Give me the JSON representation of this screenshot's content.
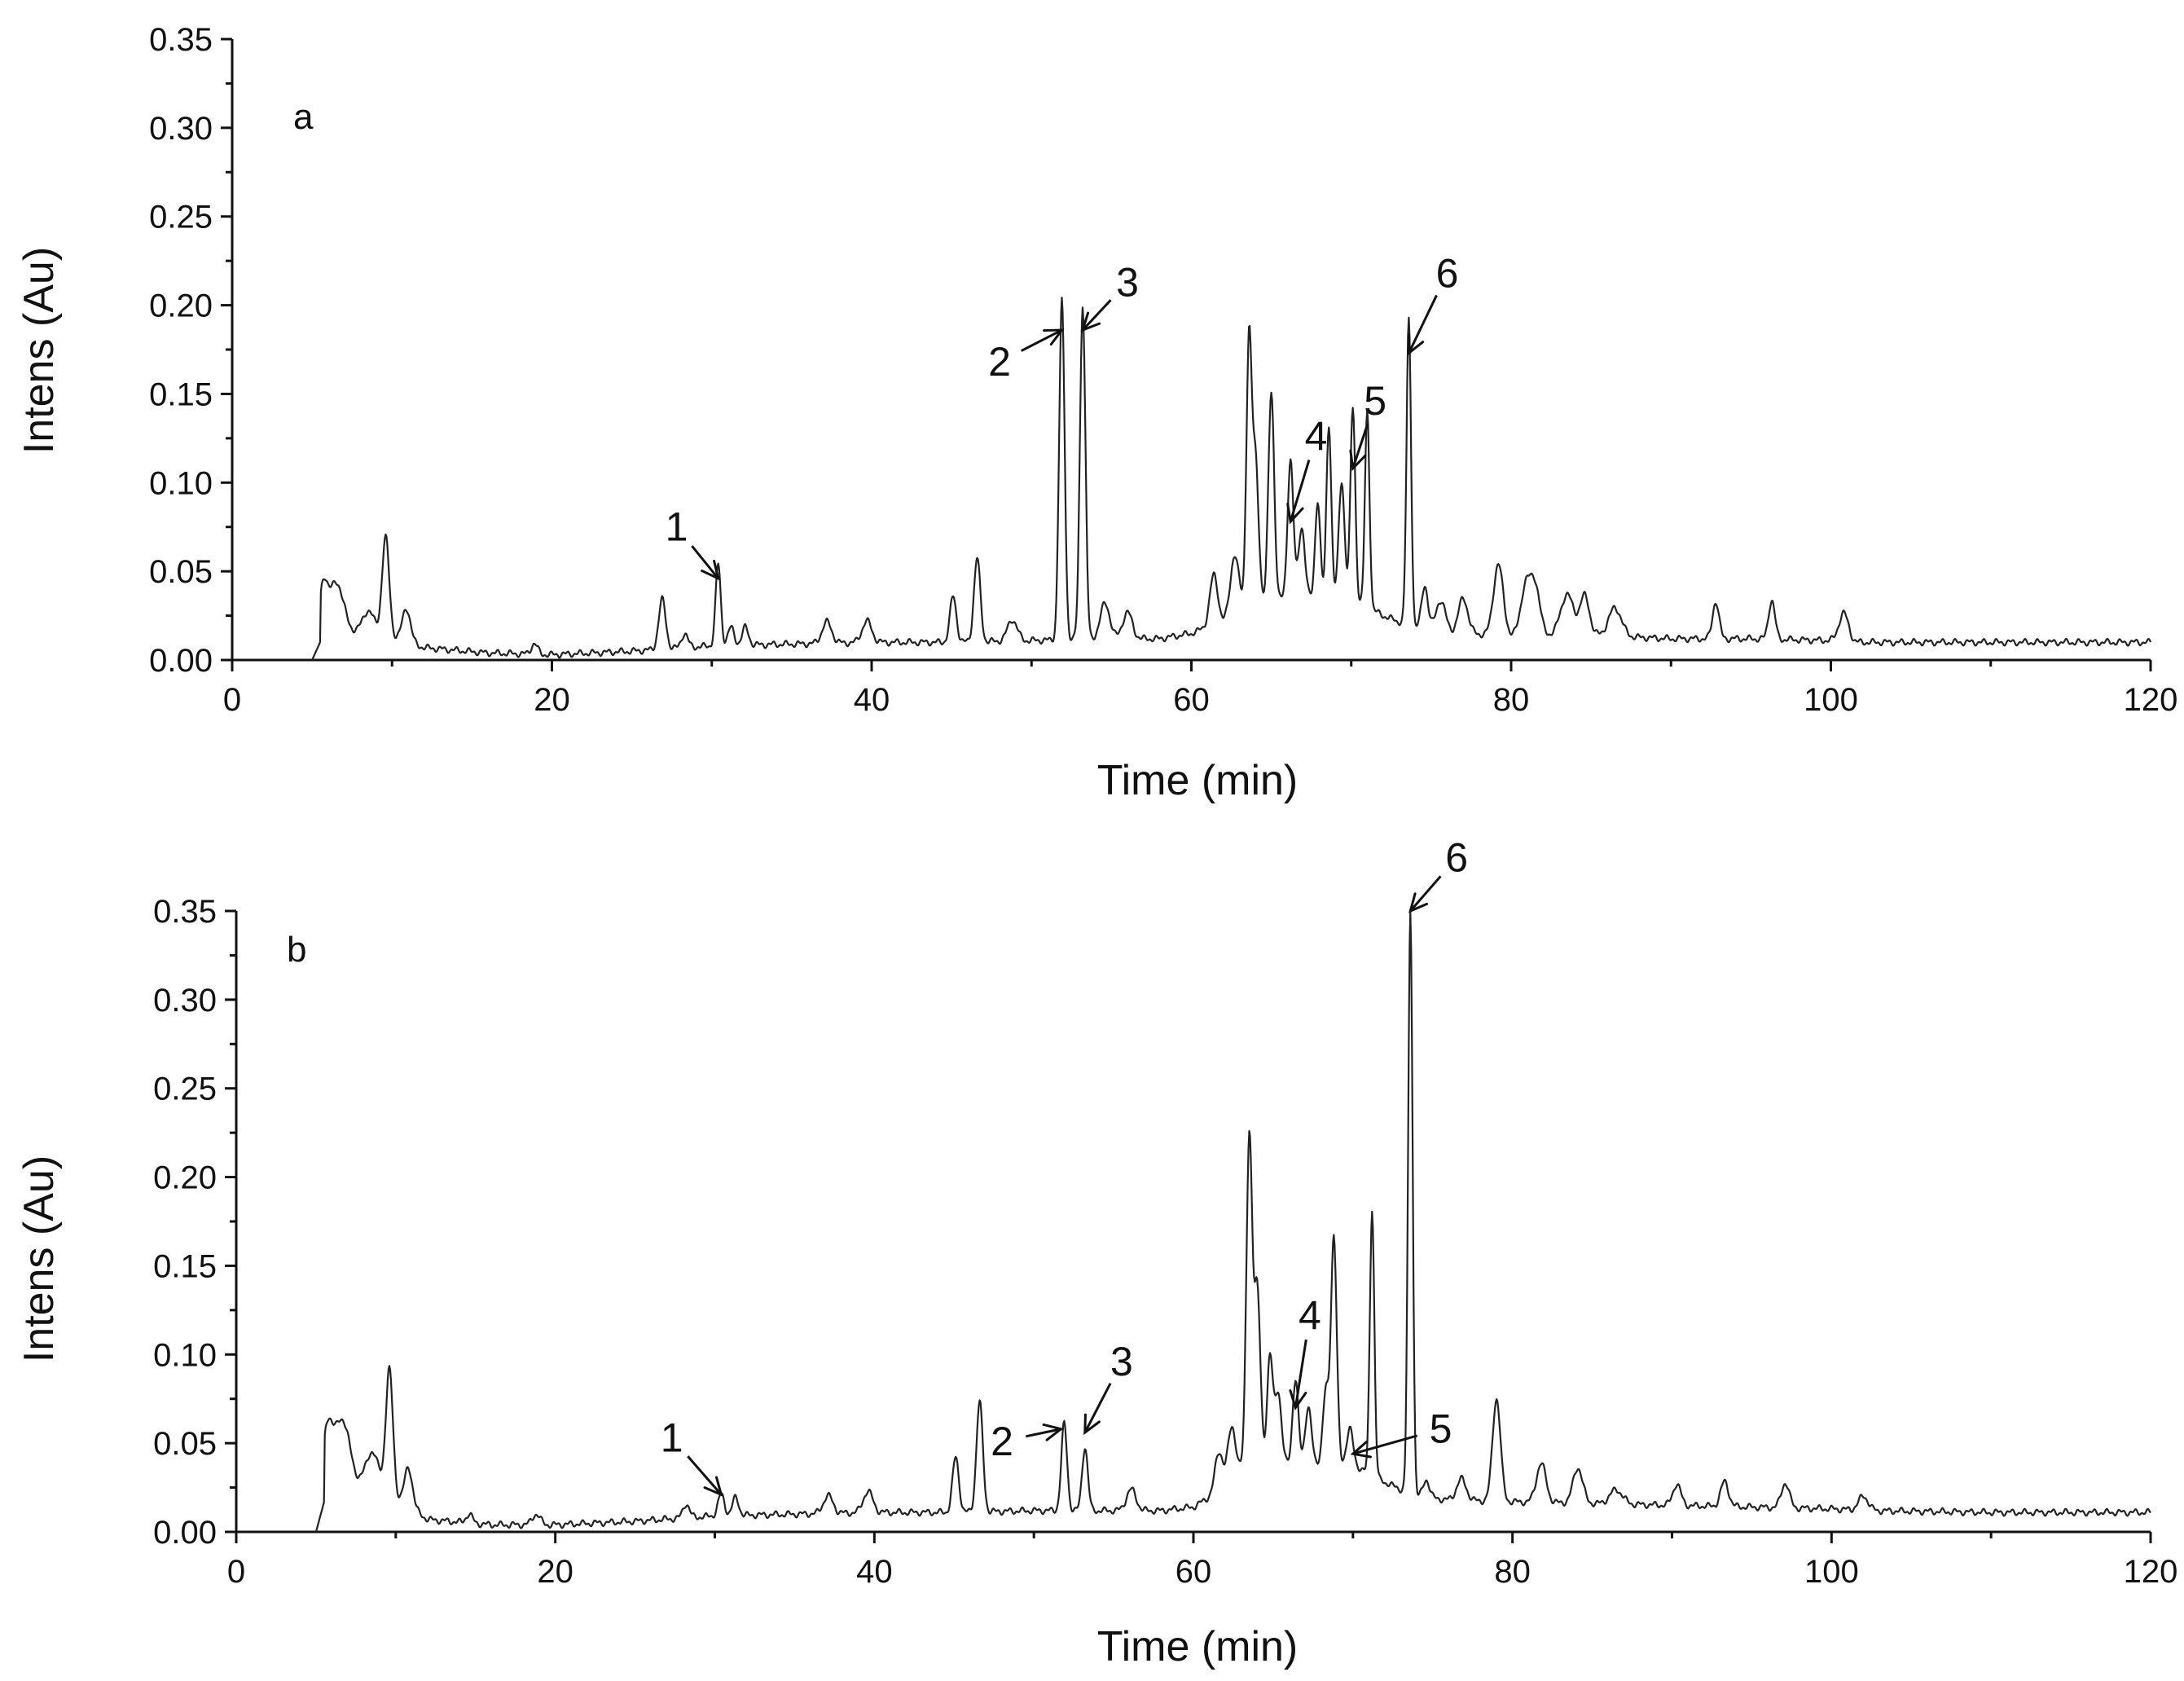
{
  "chart_data": [
    {
      "type": "line",
      "panel_letter": "a",
      "xlabel": "Time (min)",
      "ylabel": "Intens (Au)",
      "xlim": [
        0,
        120
      ],
      "ylim": [
        0,
        0.35
      ],
      "xticks": [
        0,
        20,
        40,
        60,
        80,
        100,
        120
      ],
      "yticks": [
        0.0,
        0.05,
        0.1,
        0.15,
        0.2,
        0.25,
        0.3,
        0.35
      ],
      "baseline": [
        [
          5,
          0.0
        ],
        [
          5.6,
          0.012
        ],
        [
          7,
          0.015
        ],
        [
          9,
          0.016
        ],
        [
          12,
          0.007
        ],
        [
          16,
          0.004
        ],
        [
          20,
          0.003
        ],
        [
          25,
          0.005
        ],
        [
          30,
          0.008
        ],
        [
          35,
          0.009
        ],
        [
          40,
          0.01
        ],
        [
          45,
          0.01
        ],
        [
          50,
          0.011
        ],
        [
          55,
          0.012
        ],
        [
          58,
          0.012
        ],
        [
          60,
          0.015
        ],
        [
          62,
          0.022
        ],
        [
          63,
          0.03
        ],
        [
          66,
          0.035
        ],
        [
          70,
          0.035
        ],
        [
          72,
          0.025
        ],
        [
          74,
          0.018
        ],
        [
          76,
          0.015
        ],
        [
          80,
          0.014
        ],
        [
          85,
          0.014
        ],
        [
          90,
          0.012
        ],
        [
          95,
          0.012
        ],
        [
          100,
          0.011
        ],
        [
          101.5,
          0.01
        ],
        [
          110,
          0.01
        ],
        [
          120,
          0.01
        ]
      ],
      "peaks": [
        [
          5.7,
          0.028,
          0.25
        ],
        [
          6.5,
          0.03,
          0.45
        ],
        [
          8.5,
          0.012,
          0.35
        ],
        [
          9.6,
          0.055,
          0.22
        ],
        [
          10.9,
          0.019,
          0.25
        ],
        [
          18.9,
          0.006,
          0.2
        ],
        [
          26.9,
          0.028,
          0.22
        ],
        [
          28.3,
          0.008,
          0.2
        ],
        [
          30.4,
          0.046,
          0.16
        ],
        [
          31.2,
          0.01,
          0.2
        ],
        [
          32.1,
          0.01,
          0.2
        ],
        [
          37.2,
          0.012,
          0.3
        ],
        [
          39.7,
          0.012,
          0.3
        ],
        [
          45.1,
          0.026,
          0.2
        ],
        [
          46.6,
          0.047,
          0.2
        ],
        [
          48.8,
          0.012,
          0.3
        ],
        [
          51.9,
          0.191,
          0.17
        ],
        [
          53.2,
          0.189,
          0.17
        ],
        [
          54.6,
          0.02,
          0.3
        ],
        [
          56.0,
          0.015,
          0.3
        ],
        [
          61.4,
          0.028,
          0.25
        ],
        [
          62.7,
          0.032,
          0.25
        ],
        [
          63.6,
          0.146,
          0.16
        ],
        [
          64.0,
          0.082,
          0.2
        ],
        [
          65.0,
          0.118,
          0.18
        ],
        [
          66.2,
          0.078,
          0.18
        ],
        [
          66.9,
          0.04,
          0.2
        ],
        [
          67.9,
          0.055,
          0.16
        ],
        [
          68.6,
          0.098,
          0.15
        ],
        [
          69.4,
          0.066,
          0.18
        ],
        [
          70.1,
          0.108,
          0.15
        ],
        [
          71.0,
          0.11,
          0.14
        ],
        [
          73.6,
          0.173,
          0.14
        ],
        [
          74.6,
          0.025,
          0.2
        ],
        [
          75.6,
          0.018,
          0.3
        ],
        [
          77.0,
          0.02,
          0.3
        ],
        [
          79.2,
          0.04,
          0.3
        ],
        [
          80.9,
          0.027,
          0.3
        ],
        [
          81.5,
          0.028,
          0.3
        ],
        [
          83.5,
          0.023,
          0.4
        ],
        [
          84.6,
          0.022,
          0.3
        ],
        [
          86.5,
          0.016,
          0.4
        ],
        [
          92.8,
          0.021,
          0.2
        ],
        [
          96.3,
          0.022,
          0.2
        ],
        [
          100.8,
          0.016,
          0.3
        ]
      ],
      "annotations": [
        {
          "label": "1",
          "peak_time": 30.4,
          "peak_value": 0.046,
          "label_time": 27.8,
          "label_value": 0.075
        },
        {
          "label": "2",
          "peak_time": 51.9,
          "peak_value": 0.186,
          "label_time": 48.0,
          "label_value": 0.168
        },
        {
          "label": "3",
          "peak_time": 53.2,
          "peak_value": 0.186,
          "label_time": 56.0,
          "label_value": 0.213
        },
        {
          "label": "4",
          "peak_time": 66.2,
          "peak_value": 0.078,
          "label_time": 67.8,
          "label_value": 0.126
        },
        {
          "label": "5",
          "peak_time": 70.1,
          "peak_value": 0.108,
          "label_time": 71.5,
          "label_value": 0.146
        },
        {
          "label": "6",
          "peak_time": 73.6,
          "peak_value": 0.173,
          "label_time": 76.0,
          "label_value": 0.218
        }
      ]
    },
    {
      "type": "line",
      "panel_letter": "b",
      "xlabel": "Time (min)",
      "ylabel": "Intens (Au)",
      "xlim": [
        0,
        120
      ],
      "ylim": [
        0,
        0.35
      ],
      "xticks": [
        0,
        20,
        40,
        60,
        80,
        100,
        120
      ],
      "yticks": [
        0.0,
        0.05,
        0.1,
        0.15,
        0.2,
        0.25,
        0.3,
        0.35
      ],
      "baseline": [
        [
          5,
          0.0
        ],
        [
          5.6,
          0.02
        ],
        [
          7,
          0.025
        ],
        [
          9,
          0.025
        ],
        [
          12,
          0.007
        ],
        [
          16,
          0.004
        ],
        [
          20,
          0.004
        ],
        [
          25,
          0.006
        ],
        [
          30,
          0.009
        ],
        [
          35,
          0.01
        ],
        [
          40,
          0.011
        ],
        [
          45,
          0.011
        ],
        [
          50,
          0.012
        ],
        [
          55,
          0.012
        ],
        [
          58,
          0.012
        ],
        [
          60,
          0.014
        ],
        [
          62,
          0.025
        ],
        [
          63,
          0.035
        ],
        [
          66,
          0.04
        ],
        [
          70,
          0.038
        ],
        [
          72,
          0.028
        ],
        [
          74,
          0.02
        ],
        [
          76,
          0.018
        ],
        [
          80,
          0.017
        ],
        [
          85,
          0.016
        ],
        [
          90,
          0.015
        ],
        [
          95,
          0.014
        ],
        [
          100,
          0.013
        ],
        [
          102.5,
          0.012
        ],
        [
          110,
          0.011
        ],
        [
          120,
          0.011
        ]
      ],
      "peaks": [
        [
          5.7,
          0.035,
          0.3
        ],
        [
          6.6,
          0.04,
          0.5
        ],
        [
          8.5,
          0.02,
          0.4
        ],
        [
          9.6,
          0.07,
          0.22
        ],
        [
          10.8,
          0.022,
          0.25
        ],
        [
          14.6,
          0.005,
          0.2
        ],
        [
          18.8,
          0.006,
          0.25
        ],
        [
          28.2,
          0.008,
          0.2
        ],
        [
          30.4,
          0.012,
          0.2
        ],
        [
          31.3,
          0.01,
          0.2
        ],
        [
          37.1,
          0.01,
          0.3
        ],
        [
          39.6,
          0.012,
          0.3
        ],
        [
          45.1,
          0.031,
          0.2
        ],
        [
          46.6,
          0.062,
          0.2
        ],
        [
          51.9,
          0.049,
          0.18
        ],
        [
          53.2,
          0.036,
          0.18
        ],
        [
          56.1,
          0.012,
          0.3
        ],
        [
          61.6,
          0.022,
          0.25
        ],
        [
          62.4,
          0.03,
          0.25
        ],
        [
          63.5,
          0.187,
          0.18
        ],
        [
          64.0,
          0.1,
          0.2
        ],
        [
          64.8,
          0.06,
          0.18
        ],
        [
          65.3,
          0.04,
          0.2
        ],
        [
          66.4,
          0.045,
          0.18
        ],
        [
          67.2,
          0.03,
          0.2
        ],
        [
          68.3,
          0.04,
          0.18
        ],
        [
          68.8,
          0.128,
          0.18
        ],
        [
          69.8,
          0.02,
          0.2
        ],
        [
          71.2,
          0.15,
          0.14
        ],
        [
          73.6,
          0.328,
          0.14
        ],
        [
          74.6,
          0.01,
          0.2
        ],
        [
          76.8,
          0.012,
          0.3
        ],
        [
          79.0,
          0.058,
          0.25
        ],
        [
          81.8,
          0.022,
          0.3
        ],
        [
          84.1,
          0.02,
          0.3
        ],
        [
          86.5,
          0.008,
          0.4
        ],
        [
          90.3,
          0.012,
          0.25
        ],
        [
          93.3,
          0.014,
          0.25
        ],
        [
          97.1,
          0.014,
          0.25
        ],
        [
          102.0,
          0.008,
          0.3
        ]
      ],
      "annotations": [
        {
          "label": "1",
          "peak_time": 30.4,
          "peak_value": 0.021,
          "label_time": 27.3,
          "label_value": 0.053
        },
        {
          "label": "2",
          "peak_time": 51.7,
          "peak_value": 0.058,
          "label_time": 48.0,
          "label_value": 0.051
        },
        {
          "label": "3",
          "peak_time": 53.2,
          "peak_value": 0.056,
          "label_time": 55.5,
          "label_value": 0.096
        },
        {
          "label": "4",
          "peak_time": 66.4,
          "peak_value": 0.07,
          "label_time": 67.3,
          "label_value": 0.122
        },
        {
          "label": "5",
          "peak_time": 70.0,
          "peak_value": 0.044,
          "label_time": 75.5,
          "label_value": 0.058
        },
        {
          "label": "6",
          "peak_time": 73.6,
          "peak_value": 0.35,
          "label_time": 76.5,
          "label_value": 0.38
        }
      ]
    }
  ]
}
